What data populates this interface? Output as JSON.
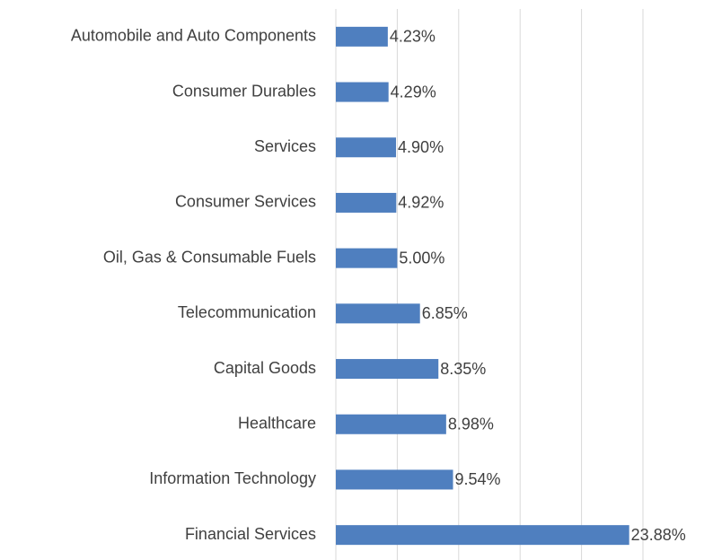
{
  "chart_data": {
    "type": "bar",
    "orientation": "horizontal",
    "categories": [
      "Automobile and Auto Components",
      "Consumer Durables",
      "Services",
      "Consumer Services",
      "Oil, Gas & Consumable Fuels",
      "Telecommunication",
      "Capital Goods",
      "Healthcare",
      "Information Technology",
      "Financial Services"
    ],
    "values": [
      4.23,
      4.29,
      4.9,
      4.92,
      5.0,
      6.85,
      8.35,
      8.98,
      9.54,
      23.88
    ],
    "value_labels": [
      "4.23%",
      "4.29%",
      "4.90%",
      "4.92%",
      "5.00%",
      "6.85%",
      "8.35%",
      "8.98%",
      "9.54%",
      "23.88%"
    ],
    "color": "#4f7fbf",
    "xlim": [
      0,
      25
    ],
    "xticks": [
      0,
      5,
      10,
      15,
      20,
      25
    ],
    "grid": true
  }
}
